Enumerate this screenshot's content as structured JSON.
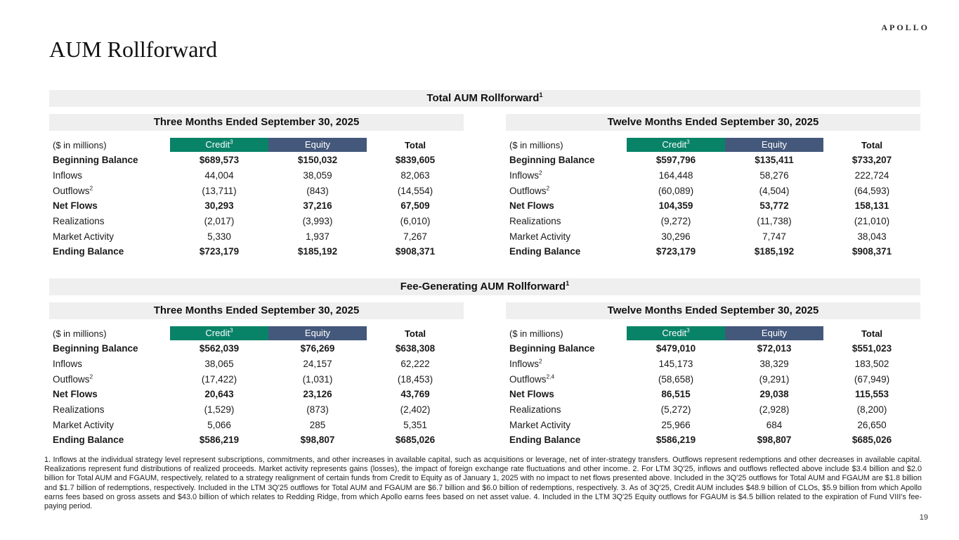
{
  "brand": {
    "logo": "APOLLO"
  },
  "page": {
    "title": "AUM Rollforward",
    "page_number": "19"
  },
  "colors": {
    "credit_green": "#098368",
    "equity_blue": "#44587B",
    "banner_gray": "#efefef"
  },
  "sections": [
    {
      "banner": "Total AUM Rollforward",
      "banner_sup": "1",
      "tables": [
        {
          "period": "Three Months Ended September 30, 2025",
          "unit_label": "($ in millions)",
          "columns": [
            {
              "label": "Credit",
              "sup": "3"
            },
            {
              "label": "Equity",
              "sup": ""
            },
            {
              "label": "Total",
              "sup": ""
            }
          ],
          "rows": [
            {
              "label": "Beginning Balance",
              "sup": "",
              "bold": true,
              "values": [
                "$689,573",
                "$150,032",
                "$839,605"
              ]
            },
            {
              "label": "Inflows",
              "sup": "",
              "bold": false,
              "values": [
                "44,004",
                "38,059",
                "82,063"
              ]
            },
            {
              "label": "Outflows",
              "sup": "2",
              "bold": false,
              "values": [
                "(13,711)",
                "(843)",
                "(14,554)"
              ]
            },
            {
              "label": "Net Flows",
              "sup": "",
              "bold": true,
              "values": [
                "30,293",
                "37,216",
                "67,509"
              ]
            },
            {
              "label": "Realizations",
              "sup": "",
              "bold": false,
              "values": [
                "(2,017)",
                "(3,993)",
                "(6,010)"
              ]
            },
            {
              "label": "Market Activity",
              "sup": "",
              "bold": false,
              "values": [
                "5,330",
                "1,937",
                "7,267"
              ]
            },
            {
              "label": "Ending Balance",
              "sup": "",
              "bold": true,
              "values": [
                "$723,179",
                "$185,192",
                "$908,371"
              ]
            }
          ]
        },
        {
          "period": "Twelve Months Ended September 30, 2025",
          "unit_label": "($ in millions)",
          "columns": [
            {
              "label": "Credit",
              "sup": "3"
            },
            {
              "label": "Equity",
              "sup": ""
            },
            {
              "label": "Total",
              "sup": ""
            }
          ],
          "rows": [
            {
              "label": "Beginning Balance",
              "sup": "",
              "bold": true,
              "values": [
                "$597,796",
                "$135,411",
                "$733,207"
              ]
            },
            {
              "label": "Inflows",
              "sup": "2",
              "bold": false,
              "values": [
                "164,448",
                "58,276",
                "222,724"
              ]
            },
            {
              "label": "Outflows",
              "sup": "2",
              "bold": false,
              "values": [
                "(60,089)",
                "(4,504)",
                "(64,593)"
              ]
            },
            {
              "label": "Net Flows",
              "sup": "",
              "bold": true,
              "values": [
                "104,359",
                "53,772",
                "158,131"
              ]
            },
            {
              "label": "Realizations",
              "sup": "",
              "bold": false,
              "values": [
                "(9,272)",
                "(11,738)",
                "(21,010)"
              ]
            },
            {
              "label": "Market Activity",
              "sup": "",
              "bold": false,
              "values": [
                "30,296",
                "7,747",
                "38,043"
              ]
            },
            {
              "label": "Ending Balance",
              "sup": "",
              "bold": true,
              "values": [
                "$723,179",
                "$185,192",
                "$908,371"
              ]
            }
          ]
        }
      ]
    },
    {
      "banner": "Fee-Generating AUM Rollforward",
      "banner_sup": "1",
      "tables": [
        {
          "period": "Three Months Ended September 30, 2025",
          "unit_label": "($ in millions)",
          "columns": [
            {
              "label": "Credit",
              "sup": "3"
            },
            {
              "label": "Equity",
              "sup": ""
            },
            {
              "label": "Total",
              "sup": ""
            }
          ],
          "rows": [
            {
              "label": "Beginning Balance",
              "sup": "",
              "bold": true,
              "values": [
                "$562,039",
                "$76,269",
                "$638,308"
              ]
            },
            {
              "label": "Inflows",
              "sup": "",
              "bold": false,
              "values": [
                "38,065",
                "24,157",
                "62,222"
              ]
            },
            {
              "label": "Outflows",
              "sup": "2",
              "bold": false,
              "values": [
                "(17,422)",
                "(1,031)",
                "(18,453)"
              ]
            },
            {
              "label": "Net Flows",
              "sup": "",
              "bold": true,
              "values": [
                "20,643",
                "23,126",
                "43,769"
              ]
            },
            {
              "label": "Realizations",
              "sup": "",
              "bold": false,
              "values": [
                "(1,529)",
                "(873)",
                "(2,402)"
              ]
            },
            {
              "label": "Market Activity",
              "sup": "",
              "bold": false,
              "values": [
                "5,066",
                "285",
                "5,351"
              ]
            },
            {
              "label": "Ending Balance",
              "sup": "",
              "bold": true,
              "values": [
                "$586,219",
                "$98,807",
                "$685,026"
              ]
            }
          ]
        },
        {
          "period": "Twelve Months Ended September 30, 2025",
          "unit_label": "($ in millions)",
          "columns": [
            {
              "label": "Credit",
              "sup": "3"
            },
            {
              "label": "Equity",
              "sup": ""
            },
            {
              "label": "Total",
              "sup": ""
            }
          ],
          "rows": [
            {
              "label": "Beginning Balance",
              "sup": "",
              "bold": true,
              "values": [
                "$479,010",
                "$72,013",
                "$551,023"
              ]
            },
            {
              "label": "Inflows",
              "sup": "2",
              "bold": false,
              "values": [
                "145,173",
                "38,329",
                "183,502"
              ]
            },
            {
              "label": "Outflows",
              "sup": "2,4",
              "bold": false,
              "values": [
                "(58,658)",
                "(9,291)",
                "(67,949)"
              ]
            },
            {
              "label": "Net Flows",
              "sup": "",
              "bold": true,
              "values": [
                "86,515",
                "29,038",
                "115,553"
              ]
            },
            {
              "label": "Realizations",
              "sup": "",
              "bold": false,
              "values": [
                "(5,272)",
                "(2,928)",
                "(8,200)"
              ]
            },
            {
              "label": "Market Activity",
              "sup": "",
              "bold": false,
              "values": [
                "25,966",
                "684",
                "26,650"
              ]
            },
            {
              "label": "Ending Balance",
              "sup": "",
              "bold": true,
              "values": [
                "$586,219",
                "$98,807",
                "$685,026"
              ]
            }
          ]
        }
      ]
    }
  ],
  "footnotes": "1. Inflows at the individual strategy level represent subscriptions, commitments, and other increases in available capital, such as acquisitions or leverage, net of inter-strategy transfers. Outflows represent redemptions and other decreases in available capital. Realizations represent fund distributions of realized proceeds. Market activity represents gains (losses), the impact of foreign exchange rate fluctuations and other income. 2. For LTM 3Q'25, inflows and outflows reflected above include $3.4 billion and $2.0 billion for Total AUM and FGAUM, respectively, related to a strategy realignment of certain funds from Credit to Equity as of January 1, 2025 with no impact to net flows presented above. Included in the 3Q'25 outflows for Total AUM and FGAUM are $1.8 billion and $1.7 billion of redemptions, respectively. Included in the LTM 3Q'25 outflows for Total AUM and FGAUM are $6.7 billion and $6.0 billion of redemptions, respectively. 3. As of 3Q'25, Credit AUM includes $48.9 billion of CLOs, $5.9 billion from which Apollo earns fees based on gross assets and $43.0 billion of which relates to Redding Ridge, from which Apollo earns fees based on net asset value. 4. Included in the LTM 3Q'25 Equity outflows for FGAUM is $4.5 billion related to the expiration of Fund VIII's fee-paying period."
}
